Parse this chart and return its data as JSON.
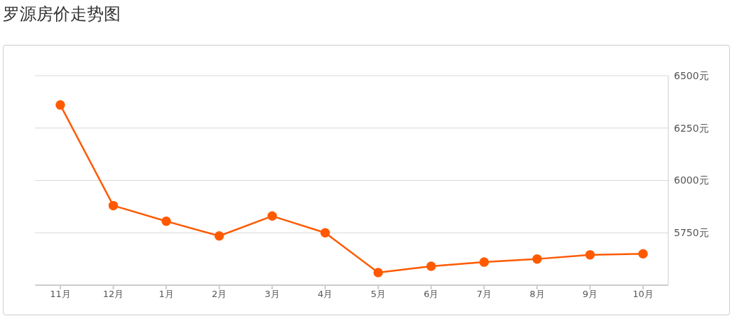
{
  "chart_data": {
    "type": "line",
    "title": "罗源房价走势图",
    "categories": [
      "11月",
      "12月",
      "1月",
      "2月",
      "3月",
      "4月",
      "5月",
      "6月",
      "7月",
      "8月",
      "9月",
      "10月"
    ],
    "series": [
      {
        "color": "#ff5a00",
        "values": [
          6360,
          5880,
          5805,
          5735,
          5830,
          5750,
          5560,
          5590,
          5610,
          5625,
          5645,
          5650
        ]
      }
    ],
    "ylim": [
      5500,
      6500
    ],
    "yticks": [
      {
        "value": 5750,
        "label": "5750元"
      },
      {
        "value": 6000,
        "label": "6000元"
      },
      {
        "value": 6250,
        "label": "6250元"
      },
      {
        "value": 6500,
        "label": "6500元"
      }
    ],
    "grid": "y",
    "marker": "circle",
    "line_style": "solid",
    "legend": false
  }
}
